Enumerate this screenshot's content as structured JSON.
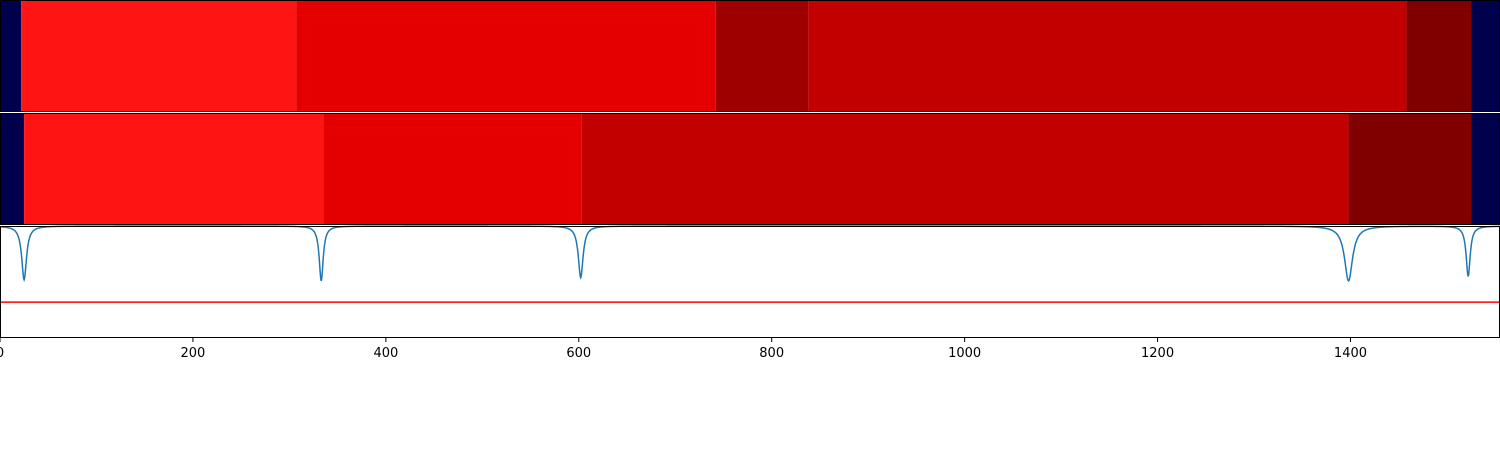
{
  "chart_data": [
    {
      "type": "heatmap",
      "xlim": [
        0,
        1555
      ],
      "segments": [
        {
          "start": 0,
          "end": 22,
          "color": "#00004c"
        },
        {
          "start": 22,
          "end": 307,
          "color": "#ff1414"
        },
        {
          "start": 307,
          "end": 742,
          "color": "#e40000"
        },
        {
          "start": 742,
          "end": 838,
          "color": "#9e0000"
        },
        {
          "start": 838,
          "end": 1458,
          "color": "#c20000"
        },
        {
          "start": 1458,
          "end": 1525,
          "color": "#800000"
        },
        {
          "start": 1525,
          "end": 1555,
          "color": "#00004c"
        }
      ]
    },
    {
      "type": "heatmap",
      "xlim": [
        0,
        1555
      ],
      "segments": [
        {
          "start": 0,
          "end": 25,
          "color": "#00004c"
        },
        {
          "start": 25,
          "end": 335,
          "color": "#ff1414"
        },
        {
          "start": 335,
          "end": 603,
          "color": "#e40000"
        },
        {
          "start": 603,
          "end": 1398,
          "color": "#c20000"
        },
        {
          "start": 1398,
          "end": 1525,
          "color": "#800000"
        },
        {
          "start": 1525,
          "end": 1555,
          "color": "#00004c"
        }
      ]
    },
    {
      "type": "line",
      "xlim": [
        0,
        1555
      ],
      "ylim": [
        -1.0,
        0.0
      ],
      "series": [
        {
          "color": "#1f77b4",
          "baseline": 0.0,
          "dips": [
            {
              "x": 25,
              "depth": 0.48,
              "width": 3.0
            },
            {
              "x": 333,
              "depth": 0.49,
              "width": 2.5
            },
            {
              "x": 602,
              "depth": 0.46,
              "width": 3.0
            },
            {
              "x": 1398,
              "depth": 0.49,
              "width": 5.0
            },
            {
              "x": 1522,
              "depth": 0.45,
              "width": 2.5
            }
          ]
        }
      ],
      "threshold": {
        "y": -0.68,
        "color": "#ff0000"
      },
      "xticks": [
        0,
        200,
        400,
        600,
        800,
        1000,
        1200,
        1400
      ],
      "xtick_labels": [
        "0",
        "200",
        "400",
        "600",
        "800",
        "1000",
        "1200",
        "1400"
      ]
    }
  ]
}
